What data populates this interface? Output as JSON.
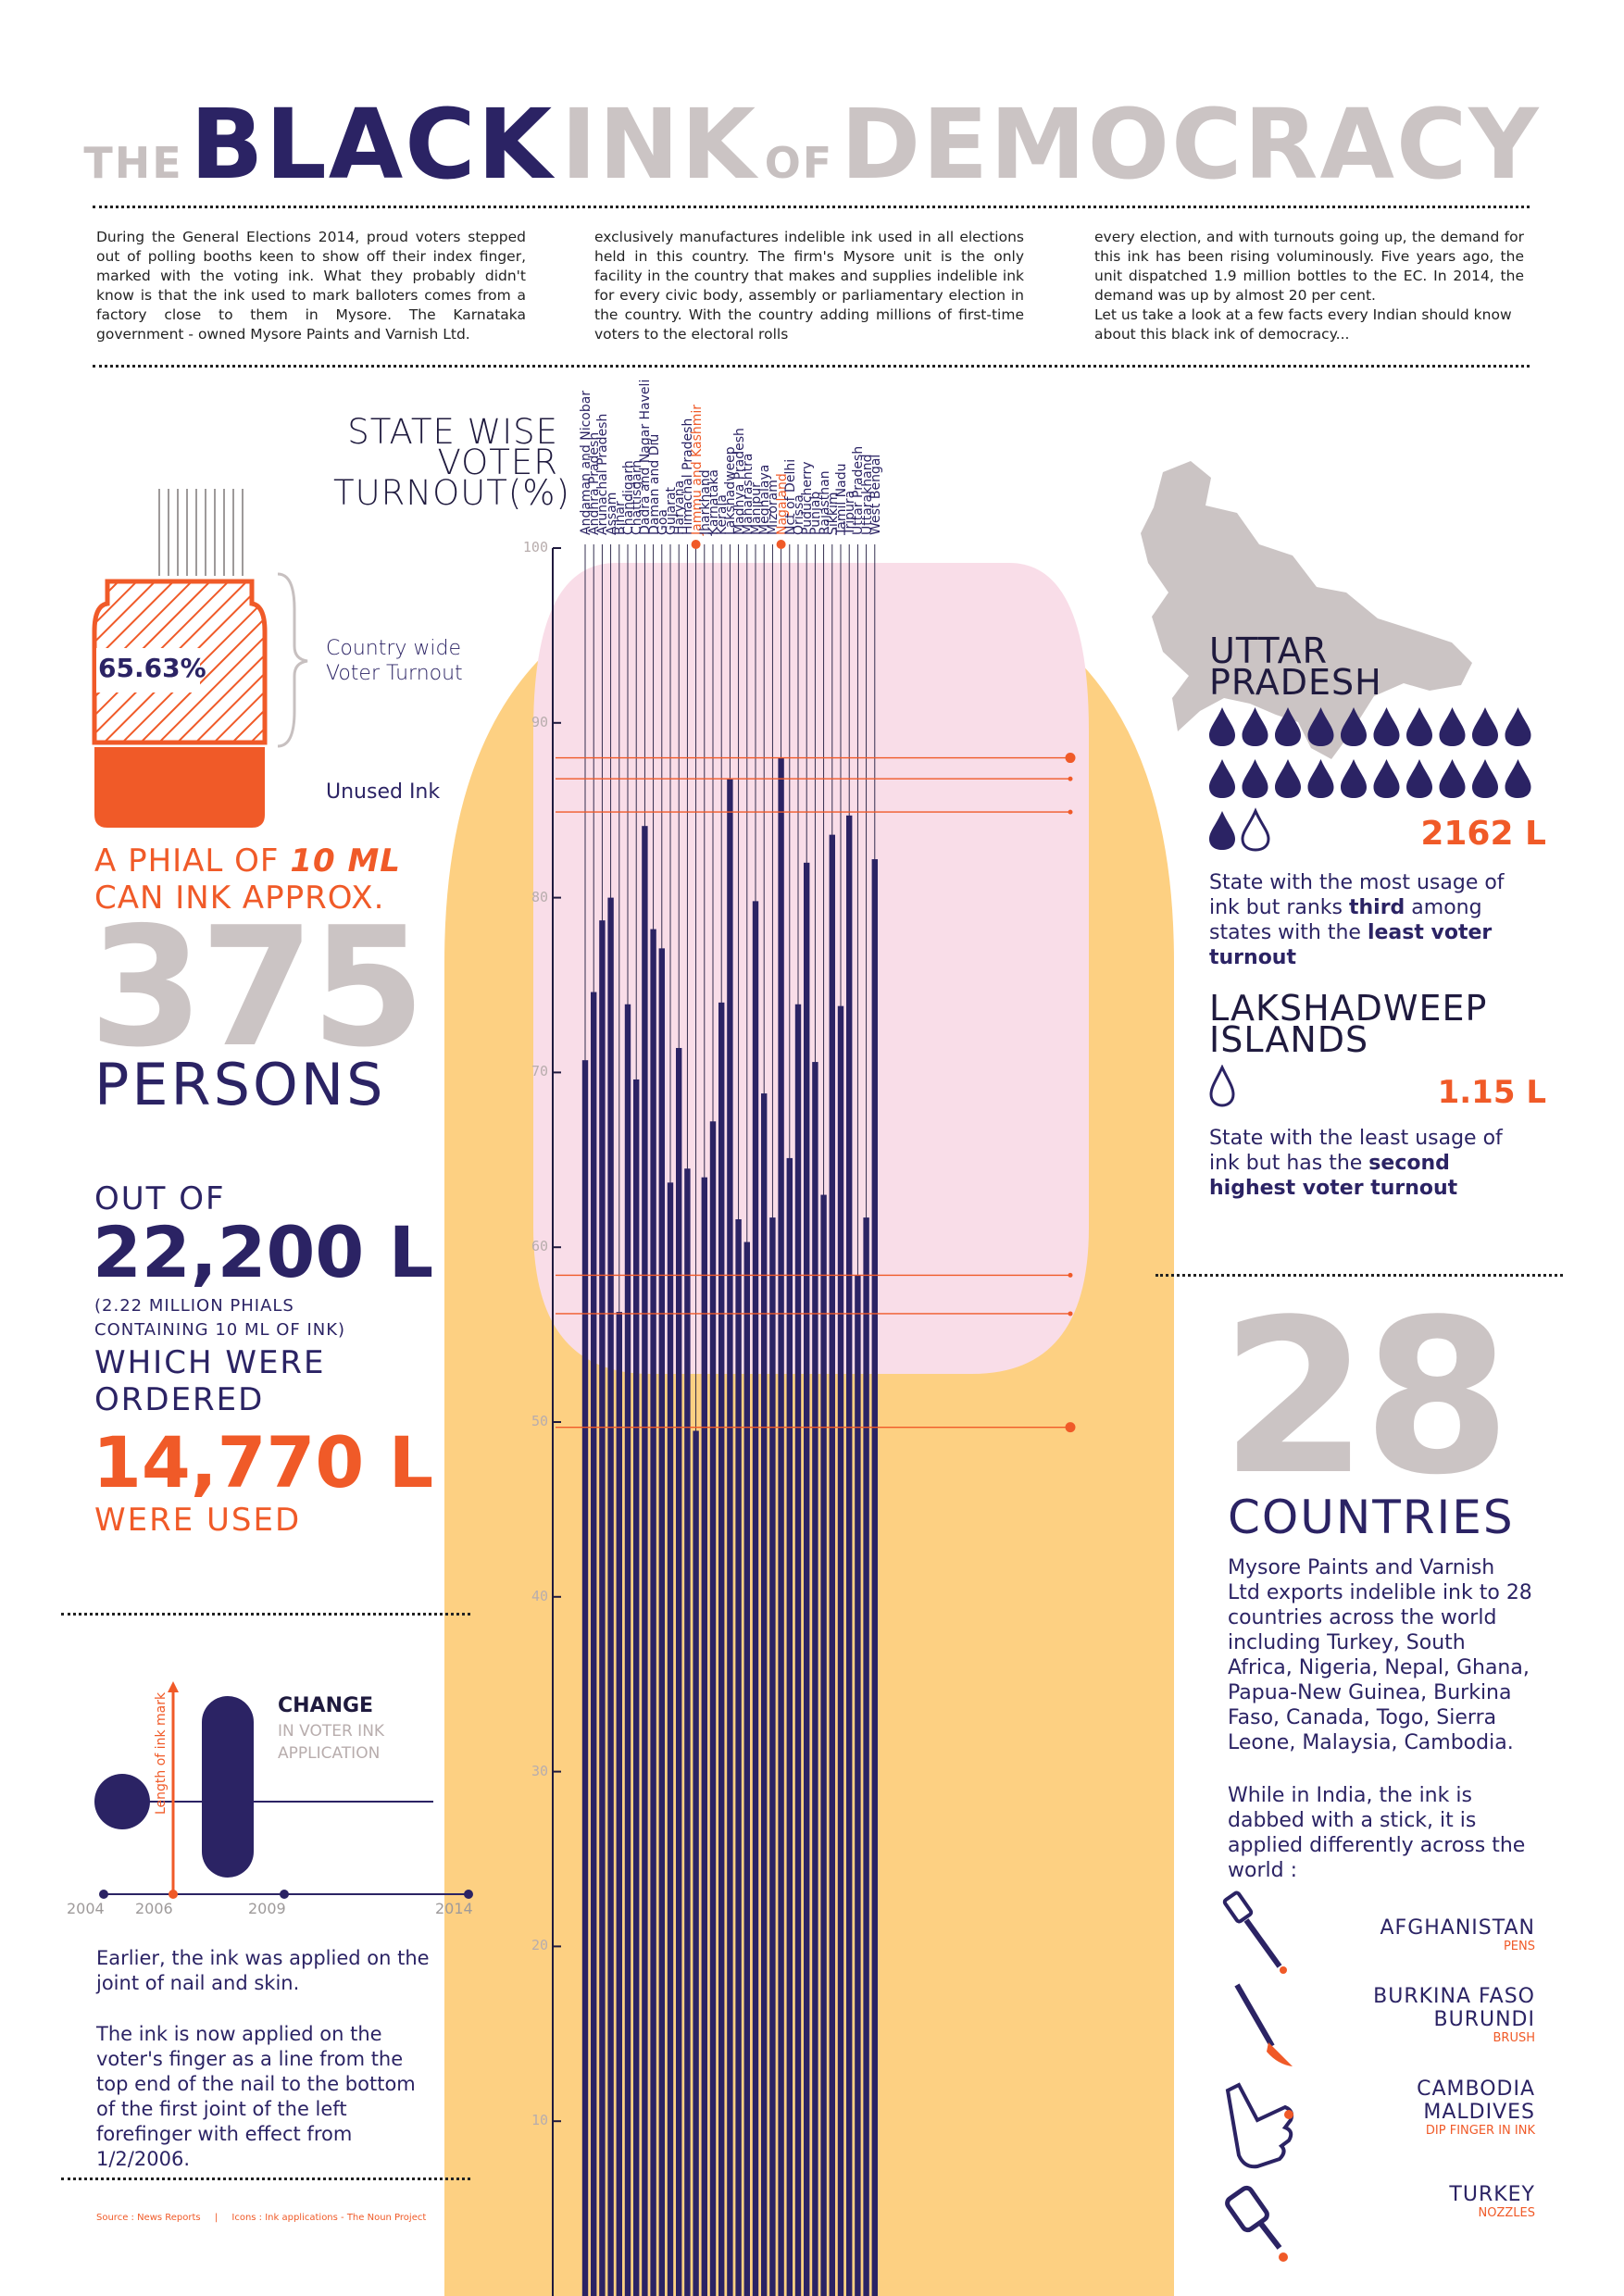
{
  "title": {
    "the": "THE",
    "black": "BLACK",
    "ink": "INK",
    "of": "OF",
    "democracy": "DEMOCRACY"
  },
  "intro": {
    "col1": "During the General Elections 2014, proud voters stepped out of polling booths keen to show off their index finger, marked with the voting ink. What they probably didn't know is that the ink used to mark balloters comes from a factory close to them in Mysore. The Karnataka government - owned Mysore Paints and Varnish Ltd.",
    "col2": "exclusively manufactures indelible ink used in all elections held in this country. The firm's Mysore unit is the only facility in the country that makes and supplies indelible ink for every civic body, assembly or parliamentary election in the country. With the country adding millions of first-time voters to the electoral rolls",
    "col3a": "every election, and with turnouts going up, the demand for this ink has been rising voluminously. Five years ago, the unit dispatched 1.9 million bottles to the EC. In 2014, the demand was up by almost 20 per cent.",
    "col3b": "Let us take a look at a few facts every Indian should know about this black ink of democracy..."
  },
  "vial": {
    "percent": "65.63%",
    "turnout_label_1": "Country wide",
    "turnout_label_2": "Voter Turnout",
    "unused_label": "Unused Ink"
  },
  "phial": {
    "line1_a": "A PHIAL OF ",
    "line1_b": "10 ML",
    "line2": "CAN INK APPROX.",
    "number": "375",
    "persons": "PERSONS"
  },
  "ink_volume": {
    "out_of": "OUT OF",
    "total": "22,200 L",
    "note1": "(2.22 MILLION PHIALS",
    "note2": "CONTAINING 10 ML OF INK)",
    "which1": "WHICH WERE",
    "which2": "ORDERED",
    "used_amount": "14,770 L",
    "were_used": "WERE USED"
  },
  "change": {
    "title": "CHANGE",
    "sub1": "IN VOTER INK",
    "sub2": "APPLICATION",
    "axis_label": "Length of ink mark",
    "years": [
      "2004",
      "2006",
      "2009",
      "2014"
    ],
    "text1": "Earlier, the ink was applied on the joint of nail and skin.",
    "text2": "The ink is now applied on the voter's finger as a line from the top end of the nail to the bottom of the first joint of the left forefinger with effect from 1/2/2006."
  },
  "source": {
    "text": "Source : News Reports",
    "sep": "|",
    "icons": "Icons : Ink applications - The Noun Project"
  },
  "up": {
    "name1": "UTTAR",
    "name2": "PRADESH",
    "amount": "2162 L",
    "desc_a": "State with the most usage of ink but ranks ",
    "desc_b": "third",
    "desc_c": " among states with the ",
    "desc_d": "least voter turnout"
  },
  "lak": {
    "name1": "LAKSHADWEEP",
    "name2": "ISLANDS",
    "amount": "1.15 L",
    "desc_a": "State with the least usage of ink but has the ",
    "desc_b": "second highest voter turnout"
  },
  "countries": {
    "number": "28",
    "label": "COUNTRIES",
    "desc": "Mysore Paints and Varnish Ltd exports indelible ink to 28 countries across the world including Turkey, South Africa, Nigeria, Nepal, Ghana, Papua-New Guinea, Burkina Faso, Canada, Togo, Sierra Leone, Malaysia, Cambodia.",
    "desc2": "While in India, the ink is dabbed with a stick, it is applied differently across the world :",
    "items": [
      {
        "name1": "AFGHANISTAN",
        "name2": "",
        "method": "PENS"
      },
      {
        "name1": "BURKINA FASO",
        "name2": "BURUNDI",
        "method": "BRUSH"
      },
      {
        "name1": "CAMBODIA",
        "name2": "MALDIVES",
        "method": "DIP FINGER IN INK"
      },
      {
        "name1": "TURKEY",
        "name2": "",
        "method": "NOZZLES"
      }
    ]
  },
  "colors": {
    "navy": "#2b2364",
    "orange": "#f05a28",
    "grey": "#cbc4c4",
    "pink": "#f9dde8",
    "yellow": "#fdd082"
  },
  "chart_data": {
    "type": "bar",
    "title": "STATE WISE VOTER TURNOUT(%)",
    "title_lines": [
      "STATE WISE",
      "VOTER",
      "TURNOUT(%)"
    ],
    "ylim": [
      0,
      100
    ],
    "yticks": [
      10,
      20,
      30,
      40,
      50,
      60,
      70,
      80,
      90,
      100
    ],
    "highlighted": [
      "Jammu and Kashmir",
      "Nagaland"
    ],
    "reference_lines": [
      88.0,
      86.8,
      84.9,
      58.4,
      56.2,
      49.7
    ],
    "categories": [
      "Andaman and Nicobar",
      "Andhra Pradesh",
      "Arunachal Pradesh",
      "Assam",
      "Bihar",
      "Chandigarh",
      "Chattisgarh",
      "Dadra and Nagar Haveli",
      "Daman and Diu",
      "Goa",
      "Gujarat",
      "Haryana",
      "Himachal Pradesh",
      "Jammu and Kashmir",
      "Jharkhand",
      "Karnataka",
      "Kerala",
      "Lakshadweep",
      "Madhya Pradesh",
      "Maharashtra",
      "Manipur",
      "Meghalaya",
      "Mizoram",
      "Nagaland",
      "Nct of Delhi",
      "Orissa",
      "Puducherry",
      "Punjab",
      "Rajasthan",
      "Sikkim",
      "Tamil Nadu",
      "Tripura",
      "Uttar Pradesh",
      "Uttarakhand",
      "West Bengal"
    ],
    "values": [
      70.7,
      74.6,
      78.7,
      80.0,
      56.3,
      73.9,
      69.6,
      84.1,
      78.2,
      77.1,
      63.7,
      71.4,
      64.5,
      49.5,
      64.0,
      67.2,
      74.0,
      86.8,
      61.6,
      60.3,
      79.8,
      68.8,
      61.7,
      88.0,
      65.1,
      73.9,
      82.0,
      70.6,
      63.0,
      83.6,
      73.8,
      84.7,
      58.4,
      61.7,
      82.2
    ]
  }
}
